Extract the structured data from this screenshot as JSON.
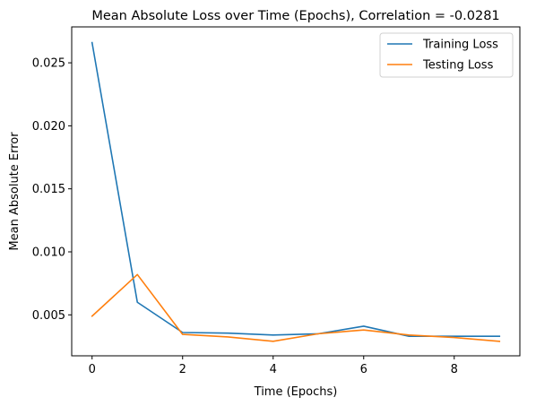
{
  "chart_data": {
    "type": "line",
    "title": "Mean Absolute Loss over Time (Epochs), Correlation = -0.0281",
    "xlabel": "Time (Epochs)",
    "ylabel": "Mean Absolute Error",
    "x": [
      0,
      1,
      2,
      3,
      4,
      5,
      6,
      7,
      8,
      9
    ],
    "xlim": [
      -0.45,
      9.45
    ],
    "ylim": [
      0.00175,
      0.02785
    ],
    "x_ticks": [
      0,
      2,
      4,
      6,
      8
    ],
    "x_tick_labels": [
      "0",
      "2",
      "4",
      "6",
      "8"
    ],
    "y_ticks": [
      0.005,
      0.01,
      0.015,
      0.02,
      0.025
    ],
    "y_tick_labels": [
      "0.005",
      "0.010",
      "0.015",
      "0.020",
      "0.025"
    ],
    "grid": false,
    "legend_position": "top-right",
    "series": [
      {
        "name": "Training Loss",
        "color": "#1f77b4",
        "values": [
          0.0266,
          0.006,
          0.0036,
          0.00355,
          0.0034,
          0.0035,
          0.0041,
          0.0033,
          0.0033,
          0.0033
        ]
      },
      {
        "name": "Testing Loss",
        "color": "#ff7f0e",
        "values": [
          0.0049,
          0.0082,
          0.00345,
          0.00325,
          0.0029,
          0.0035,
          0.0038,
          0.0034,
          0.0032,
          0.0029
        ]
      }
    ]
  }
}
